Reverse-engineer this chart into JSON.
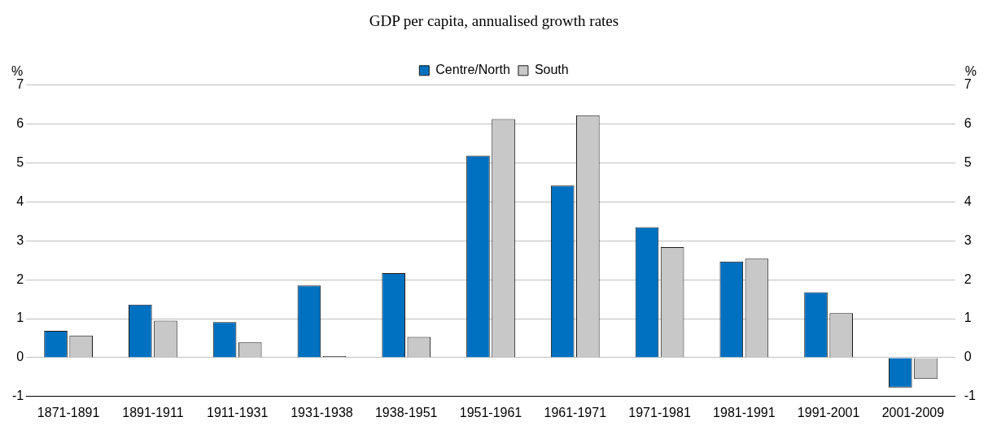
{
  "chart_data": {
    "type": "bar",
    "title": "GDP per capita, annualised growth rates",
    "ylabel": "%",
    "y2label": "%",
    "categories": [
      "1871-1891",
      "1891-1911",
      "1911-1931",
      "1931-1938",
      "1938-1951",
      "1951-1961",
      "1961-1971",
      "1971-1981",
      "1981-1991",
      "1991-2001",
      "2001-2009"
    ],
    "series": [
      {
        "name": "Centre/North",
        "color": "#0070c0",
        "values": [
          0.69,
          1.36,
          0.91,
          1.85,
          2.17,
          5.19,
          4.42,
          3.35,
          2.47,
          1.68,
          -0.77
        ]
      },
      {
        "name": "South",
        "color": "#c8c8c8",
        "values": [
          0.57,
          0.95,
          0.39,
          0.04,
          0.53,
          6.13,
          6.23,
          2.84,
          2.54,
          1.14,
          -0.55
        ]
      }
    ],
    "ylim": [
      -1,
      7
    ],
    "yticks": [
      -1,
      0,
      1,
      2,
      3,
      4,
      5,
      6,
      7
    ],
    "y2lim": [
      -1,
      7
    ],
    "y2ticks": [
      -1,
      0,
      1,
      2,
      3,
      4,
      5,
      6,
      7
    ],
    "grid": "y",
    "legend": "top"
  }
}
